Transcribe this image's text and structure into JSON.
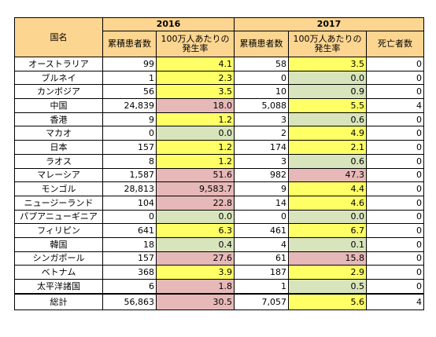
{
  "headers": {
    "country": "国名",
    "year_2016": "2016",
    "year_2017": "2017",
    "cases": "累積患者数",
    "rate": "100万人あたりの\n発生率",
    "deaths": "死亡者数"
  },
  "rows": [
    {
      "country": "オーストラリア",
      "cases_2016": "99",
      "rate_2016": "4.1",
      "rate_2016_color": "yellow",
      "cases_2017": "58",
      "rate_2017": "3.5",
      "rate_2017_color": "yellow",
      "deaths": "0"
    },
    {
      "country": "ブルネイ",
      "cases_2016": "1",
      "rate_2016": "2.3",
      "rate_2016_color": "yellow",
      "cases_2017": "0",
      "rate_2017": "0.0",
      "rate_2017_color": "green",
      "deaths": "0"
    },
    {
      "country": "カンボジア",
      "cases_2016": "56",
      "rate_2016": "3.5",
      "rate_2016_color": "yellow",
      "cases_2017": "10",
      "rate_2017": "0.9",
      "rate_2017_color": "green",
      "deaths": "0"
    },
    {
      "country": "中国",
      "cases_2016": "24,839",
      "rate_2016": "18.0",
      "rate_2016_color": "pink",
      "cases_2017": "5,088",
      "rate_2017": "5.5",
      "rate_2017_color": "yellow",
      "deaths": "4"
    },
    {
      "country": "香港",
      "cases_2016": "9",
      "rate_2016": "1.2",
      "rate_2016_color": "yellow",
      "cases_2017": "3",
      "rate_2017": "0.6",
      "rate_2017_color": "green",
      "deaths": "0"
    },
    {
      "country": "マカオ",
      "cases_2016": "0",
      "rate_2016": "0.0",
      "rate_2016_color": "green",
      "cases_2017": "2",
      "rate_2017": "4.9",
      "rate_2017_color": "yellow",
      "deaths": "0"
    },
    {
      "country": "日本",
      "cases_2016": "157",
      "rate_2016": "1.2",
      "rate_2016_color": "yellow",
      "cases_2017": "174",
      "rate_2017": "2.1",
      "rate_2017_color": "yellow",
      "deaths": "0"
    },
    {
      "country": "ラオス",
      "cases_2016": "8",
      "rate_2016": "1.2",
      "rate_2016_color": "yellow",
      "cases_2017": "3",
      "rate_2017": "0.6",
      "rate_2017_color": "green",
      "deaths": "0"
    },
    {
      "country": "マレーシア",
      "cases_2016": "1,587",
      "rate_2016": "51.6",
      "rate_2016_color": "pink",
      "cases_2017": "982",
      "rate_2017": "47.3",
      "rate_2017_color": "pink",
      "deaths": "0"
    },
    {
      "country": "モンゴル",
      "cases_2016": "28,813",
      "rate_2016": "9,583.7",
      "rate_2016_color": "pink",
      "cases_2017": "9",
      "rate_2017": "4.4",
      "rate_2017_color": "yellow",
      "deaths": "0"
    },
    {
      "country": "ニュージーランド",
      "cases_2016": "104",
      "rate_2016": "22.8",
      "rate_2016_color": "pink",
      "cases_2017": "14",
      "rate_2017": "4.6",
      "rate_2017_color": "yellow",
      "deaths": "0"
    },
    {
      "country": "パプアニューギニア",
      "cases_2016": "0",
      "rate_2016": "0.0",
      "rate_2016_color": "green",
      "cases_2017": "0",
      "rate_2017": "0.0",
      "rate_2017_color": "green",
      "deaths": "0"
    },
    {
      "country": "フィリピン",
      "cases_2016": "641",
      "rate_2016": "6.3",
      "rate_2016_color": "yellow",
      "cases_2017": "461",
      "rate_2017": "6.7",
      "rate_2017_color": "yellow",
      "deaths": "0"
    },
    {
      "country": "韓国",
      "cases_2016": "18",
      "rate_2016": "0.4",
      "rate_2016_color": "green",
      "cases_2017": "4",
      "rate_2017": "0.1",
      "rate_2017_color": "green",
      "deaths": "0"
    },
    {
      "country": "シンガポール",
      "cases_2016": "157",
      "rate_2016": "27.6",
      "rate_2016_color": "pink",
      "cases_2017": "61",
      "rate_2017": "15.8",
      "rate_2017_color": "pink",
      "deaths": "0"
    },
    {
      "country": "ベトナム",
      "cases_2016": "368",
      "rate_2016": "3.9",
      "rate_2016_color": "yellow",
      "cases_2017": "187",
      "rate_2017": "2.9",
      "rate_2017_color": "yellow",
      "deaths": "0"
    },
    {
      "country": "太平洋諸国",
      "cases_2016": "6",
      "rate_2016": "1.8",
      "rate_2016_color": "pink",
      "cases_2017": "1",
      "rate_2017": "0.5",
      "rate_2017_color": "green",
      "deaths": "0"
    }
  ],
  "total": {
    "country": "総計",
    "cases_2016": "56,863",
    "rate_2016": "30.5",
    "rate_2016_color": "pink",
    "cases_2017": "7,057",
    "rate_2017": "5.6",
    "rate_2017_color": "yellow",
    "deaths": "4"
  }
}
